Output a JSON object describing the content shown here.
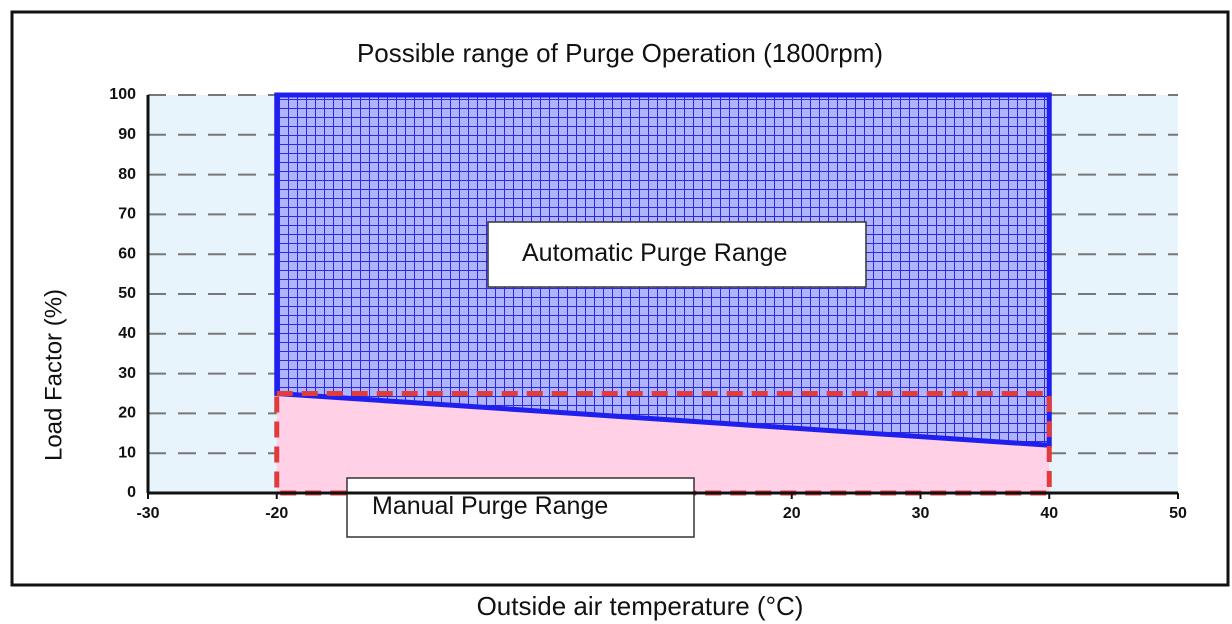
{
  "chart_data": {
    "type": "area",
    "title": "Possible range of Purge Operation (1800rpm)",
    "x_label": "Outside air temperature (°C)",
    "y_label": "Load Factor (%)",
    "xlim": [
      -30,
      50
    ],
    "xticks": [
      -30,
      -20,
      20,
      30,
      40,
      50
    ],
    "ylim": [
      0,
      100
    ],
    "yticks": [
      0,
      10,
      20,
      30,
      40,
      50,
      60,
      70,
      80,
      90,
      100
    ],
    "grid": true,
    "series": [
      {
        "name": "Manual Purge Range",
        "color": "#ffd0e6",
        "edge_color": "#e03c3c",
        "x": [
          -20,
          40
        ],
        "lower": [
          0,
          0
        ],
        "upper": [
          25,
          25
        ]
      },
      {
        "name": "Automatic Purge Range",
        "color": "#2020ee",
        "x": [
          -20,
          40
        ],
        "lower": [
          25,
          12
        ],
        "upper": [
          100,
          100
        ]
      }
    ]
  }
}
